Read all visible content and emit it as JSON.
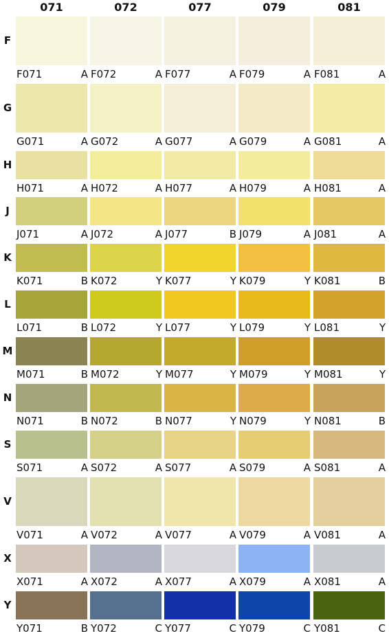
{
  "columns": [
    "071",
    "072",
    "077",
    "079",
    "081"
  ],
  "rows": [
    {
      "letter": "F",
      "cells": [
        {
          "code": "F071",
          "grade": "A",
          "color": "#f6f6dc"
        },
        {
          "code": "F072",
          "grade": "A",
          "color": "#f6f6e6"
        },
        {
          "code": "F077",
          "grade": "A",
          "color": "#f6f2e2"
        },
        {
          "code": "F079",
          "grade": "A",
          "color": "#f5eedd"
        },
        {
          "code": "F081",
          "grade": "A",
          "color": "#f5efd8"
        }
      ]
    },
    {
      "letter": "G",
      "cells": [
        {
          "code": "G071",
          "grade": "A",
          "color": "#ece8ac"
        },
        {
          "code": "G072",
          "grade": "A",
          "color": "#f5f1c6"
        },
        {
          "code": "G077",
          "grade": "A",
          "color": "#f4eed6"
        },
        {
          "code": "G079",
          "grade": "A",
          "color": "#f3ebc6"
        },
        {
          "code": "G081",
          "grade": "A",
          "color": "#f3eca6"
        }
      ]
    },
    {
      "letter": "H",
      "cells": [
        {
          "code": "H071",
          "grade": "A",
          "color": "#e9e1a2"
        },
        {
          "code": "H072",
          "grade": "A",
          "color": "#f2ee9a"
        },
        {
          "code": "H077",
          "grade": "A",
          "color": "#f1eaa4"
        },
        {
          "code": "H079",
          "grade": "A",
          "color": "#f2ec9c"
        },
        {
          "code": "H081",
          "grade": "A",
          "color": "#eedc98"
        }
      ]
    },
    {
      "letter": "J",
      "cells": [
        {
          "code": "J071",
          "grade": "A",
          "color": "#d3d07c"
        },
        {
          "code": "J072",
          "grade": "A",
          "color": "#f2e684"
        },
        {
          "code": "J077",
          "grade": "B",
          "color": "#ecd680"
        },
        {
          "code": "J079",
          "grade": "A",
          "color": "#f2e26c"
        },
        {
          "code": "J081",
          "grade": "A",
          "color": "#e6c862"
        }
      ]
    },
    {
      "letter": "K",
      "cells": [
        {
          "code": "K071",
          "grade": "B",
          "color": "#c0bc4e"
        },
        {
          "code": "K072",
          "grade": "Y",
          "color": "#dcd44a"
        },
        {
          "code": "K077",
          "grade": "Y",
          "color": "#f0d62c"
        },
        {
          "code": "K079",
          "grade": "Y",
          "color": "#f2c040"
        },
        {
          "code": "K081",
          "grade": "B",
          "color": "#deb840"
        }
      ]
    },
    {
      "letter": "L",
      "cells": [
        {
          "code": "L071",
          "grade": "B",
          "color": "#a8a43c"
        },
        {
          "code": "L072",
          "grade": "Y",
          "color": "#d0ca1c"
        },
        {
          "code": "L077",
          "grade": "Y",
          "color": "#f0c820"
        },
        {
          "code": "L079",
          "grade": "Y",
          "color": "#e8ba1c"
        },
        {
          "code": "L081",
          "grade": "Y",
          "color": "#d2a228"
        }
      ]
    },
    {
      "letter": "M",
      "cells": [
        {
          "code": "M071",
          "grade": "B",
          "color": "#8a8452"
        },
        {
          "code": "M072",
          "grade": "Y",
          "color": "#b6a82c"
        },
        {
          "code": "M077",
          "grade": "Y",
          "color": "#c2aa2a"
        },
        {
          "code": "M079",
          "grade": "Y",
          "color": "#ce9e28"
        },
        {
          "code": "M081",
          "grade": "Y",
          "color": "#b08c2a"
        }
      ]
    },
    {
      "letter": "N",
      "cells": [
        {
          "code": "N071",
          "grade": "B",
          "color": "#a2a67a"
        },
        {
          "code": "N072",
          "grade": "B",
          "color": "#c2b850"
        },
        {
          "code": "N077",
          "grade": "Y",
          "color": "#dab444"
        },
        {
          "code": "N079",
          "grade": "Y",
          "color": "#dcaa48"
        },
        {
          "code": "N081",
          "grade": "B",
          "color": "#c8a45a"
        }
      ]
    },
    {
      "letter": "S",
      "cells": [
        {
          "code": "S071",
          "grade": "A",
          "color": "#b8c08e"
        },
        {
          "code": "S072",
          "grade": "A",
          "color": "#d4d088"
        },
        {
          "code": "S077",
          "grade": "A",
          "color": "#e8d484"
        },
        {
          "code": "S079",
          "grade": "A",
          "color": "#e6cc72"
        },
        {
          "code": "S081",
          "grade": "A",
          "color": "#d4b87e"
        }
      ]
    },
    {
      "letter": "V",
      "cells": [
        {
          "code": "V071",
          "grade": "A",
          "color": "#d8d8bc"
        },
        {
          "code": "V072",
          "grade": "A",
          "color": "#e2e0b0"
        },
        {
          "code": "V077",
          "grade": "A",
          "color": "#f0e6ac"
        },
        {
          "code": "V079",
          "grade": "A",
          "color": "#ecd8a0"
        },
        {
          "code": "V081",
          "grade": "A",
          "color": "#e4cf9e"
        }
      ]
    },
    {
      "letter": "X",
      "cells": [
        {
          "code": "X071",
          "grade": "A",
          "color": "#d4c8bc"
        },
        {
          "code": "X072",
          "grade": "A",
          "color": "#b2b6c2"
        },
        {
          "code": "X077",
          "grade": "A",
          "color": "#d8d8dc"
        },
        {
          "code": "X079",
          "grade": "A",
          "color": "#8cb4f4"
        },
        {
          "code": "X081",
          "grade": "A",
          "color": "#c8ccd0"
        }
      ]
    },
    {
      "letter": "Y",
      "cells": [
        {
          "code": "Y071",
          "grade": "B",
          "color": "#8a7458"
        },
        {
          "code": "Y072",
          "grade": "C",
          "color": "#567090"
        },
        {
          "code": "Y077",
          "grade": "C",
          "color": "#1430a8"
        },
        {
          "code": "Y079",
          "grade": "C",
          "color": "#0d44aa"
        },
        {
          "code": "Y081",
          "grade": "C",
          "color": "#486410"
        }
      ]
    }
  ]
}
